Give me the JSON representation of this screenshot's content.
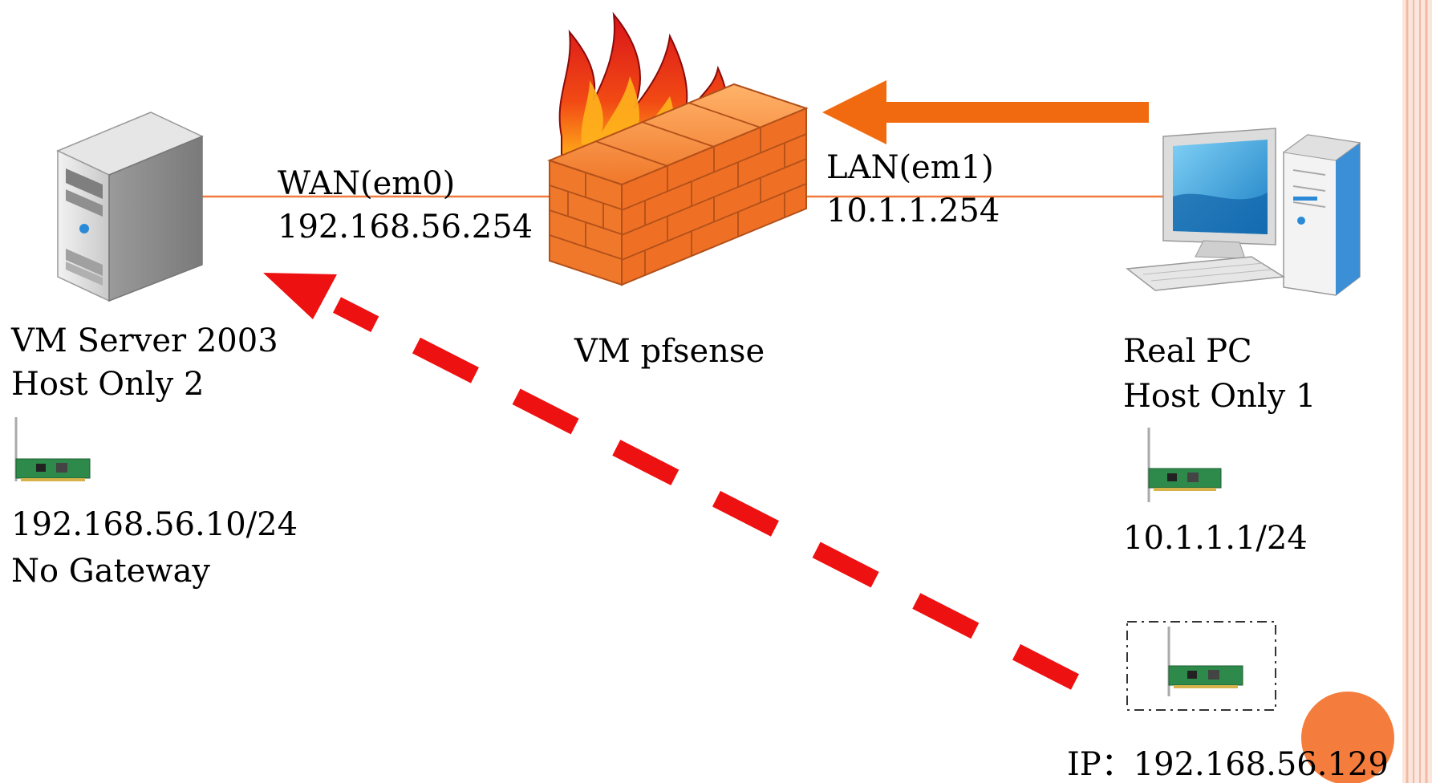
{
  "nodes": {
    "server": {
      "name": "VM Server 2003",
      "network": "Host Only 2"
    },
    "firewall": {
      "name": "VM pfsense"
    },
    "pc": {
      "name": "Real PC",
      "network": "Host Only 1"
    }
  },
  "interfaces": {
    "wan": {
      "name": "WAN(em0)",
      "ip": "192.168.56.254"
    },
    "lan": {
      "name": "LAN(em1)",
      "ip": "10.1.1.254"
    }
  },
  "nics": {
    "server": {
      "ip": "192.168.56.10/24",
      "gateway": "No Gateway"
    },
    "pc": {
      "ip": "10.1.1.1/24"
    },
    "extra": {
      "ip": "IP：192.168.56.129"
    }
  },
  "colors": {
    "link_line": "#f07a3c",
    "solid_arrow": "#f26a10",
    "dashed_arrow": "#ee1111",
    "brick": "#f0782a",
    "accent_circle": "#f47c3c",
    "sidebar": "#f4b9a2"
  },
  "icons": {
    "server": "server-tower-icon",
    "firewall": "firewall-icon",
    "pc": "desktop-computer-icon",
    "nic": "network-card-icon"
  }
}
